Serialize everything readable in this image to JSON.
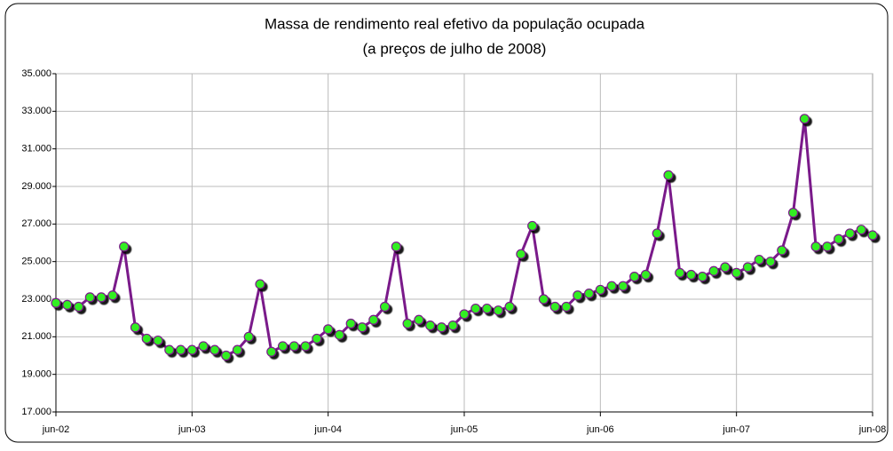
{
  "chart_data": {
    "type": "line",
    "title": "Massa de rendimento real efetivo da população ocupada",
    "subtitle": "(a preços de julho de 2008)",
    "categories": [
      "jun-02",
      null,
      null,
      null,
      null,
      null,
      null,
      null,
      null,
      null,
      null,
      null,
      "jun-03",
      null,
      null,
      null,
      null,
      null,
      null,
      null,
      null,
      null,
      null,
      null,
      "jun-04",
      null,
      null,
      null,
      null,
      null,
      null,
      null,
      null,
      null,
      null,
      null,
      "jun-05",
      null,
      null,
      null,
      null,
      null,
      null,
      null,
      null,
      null,
      null,
      null,
      "jun-06",
      null,
      null,
      null,
      null,
      null,
      null,
      null,
      null,
      null,
      null,
      null,
      "jun-07",
      null,
      null,
      null,
      null,
      null,
      null,
      null,
      null,
      null,
      null,
      null,
      "jun-08"
    ],
    "values": [
      22800,
      22700,
      22600,
      23100,
      23100,
      23200,
      25800,
      21500,
      20900,
      20800,
      20300,
      20300,
      20300,
      20500,
      20300,
      20000,
      20300,
      21000,
      23800,
      20200,
      20500,
      20500,
      20500,
      20900,
      21400,
      21100,
      21700,
      21500,
      21900,
      22600,
      25800,
      21700,
      21900,
      21600,
      21500,
      21600,
      22200,
      22500,
      22500,
      22400,
      22600,
      25400,
      26900,
      23000,
      22600,
      22600,
      23200,
      23300,
      23500,
      23700,
      23700,
      24200,
      24300,
      26500,
      29600,
      24400,
      24300,
      24200,
      24500,
      24700,
      24400,
      24700,
      25100,
      25000,
      25600,
      27600,
      32600,
      25800,
      25800,
      26200,
      26500,
      26700,
      26400
    ],
    "color": "#7a1a8a",
    "marker_color": "#33ee22",
    "ylim": [
      17000,
      35000
    ],
    "yticks": [
      {
        "value": 17000,
        "label": "17.000"
      },
      {
        "value": 19000,
        "label": "19.000"
      },
      {
        "value": 21000,
        "label": "21.000"
      },
      {
        "value": 23000,
        "label": "23.000"
      },
      {
        "value": 25000,
        "label": "25.000"
      },
      {
        "value": 27000,
        "label": "27.000"
      },
      {
        "value": 29000,
        "label": "29.000"
      },
      {
        "value": 31000,
        "label": "31.000"
      },
      {
        "value": 33000,
        "label": "33.000"
      },
      {
        "value": 35000,
        "label": "35.000"
      }
    ],
    "grid": true
  }
}
